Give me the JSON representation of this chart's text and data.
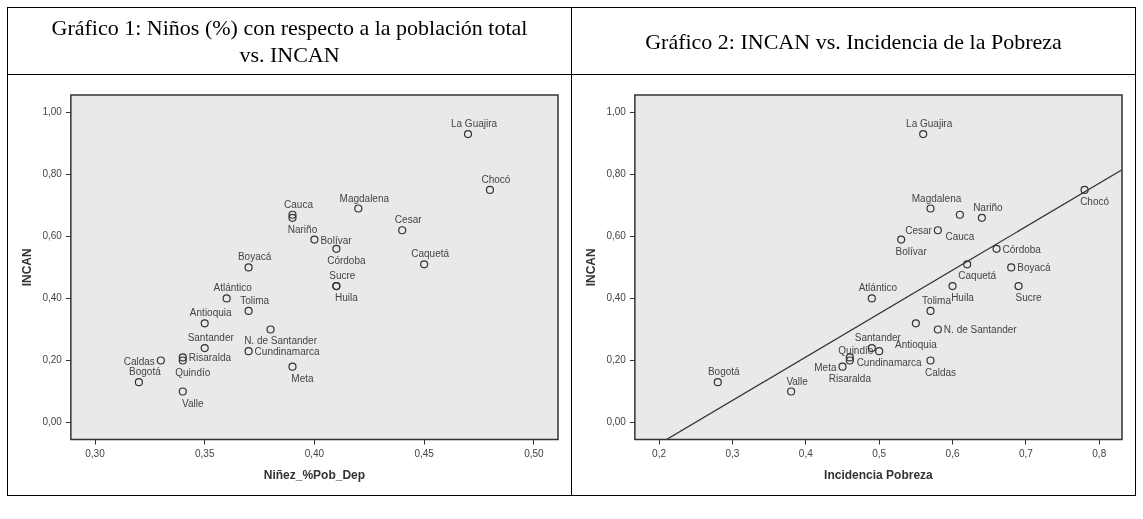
{
  "chart_data": [
    {
      "type": "scatter",
      "title": "Gráfico 1: Niños (%) con respecto a la población total vs. INCAN",
      "xlabel": "Niñez_%Pob_Dep",
      "ylabel": "INCAN",
      "marker": "circle",
      "series": [
        {
          "color": "#333333",
          "x": [
            0.47,
            0.48,
            0.42,
            0.39,
            0.39,
            0.44,
            0.4,
            0.41,
            0.45,
            0.37,
            0.41,
            0.41,
            0.36,
            0.37,
            0.35,
            0.38,
            0.35,
            0.37,
            0.34,
            0.34,
            0.33,
            0.39,
            0.32,
            0.34
          ],
          "values": [
            0.93,
            0.75,
            0.69,
            0.67,
            0.66,
            0.62,
            0.59,
            0.56,
            0.51,
            0.5,
            0.44,
            0.44,
            0.4,
            0.36,
            0.32,
            0.3,
            0.24,
            0.23,
            0.21,
            0.2,
            0.2,
            0.18,
            0.13,
            0.1
          ]
        }
      ],
      "xlim": [
        0.289,
        0.511
      ],
      "xticks": [
        {
          "value": 0.3,
          "label": "0,30"
        },
        {
          "value": 0.35,
          "label": "0,35"
        },
        {
          "value": 0.4,
          "label": "0,40"
        },
        {
          "value": 0.45,
          "label": "0,45"
        },
        {
          "value": 0.5,
          "label": "0,50"
        }
      ],
      "ylim": [
        -0.055,
        1.056
      ],
      "yticks": [
        {
          "value": 0,
          "label": "0,00"
        },
        {
          "value": 0.2,
          "label": "0,20"
        },
        {
          "value": 0.4,
          "label": "0,40"
        },
        {
          "value": 0.6,
          "label": "0,60"
        },
        {
          "value": 0.8,
          "label": "0,80"
        },
        {
          "value": 1,
          "label": "1,00"
        }
      ],
      "annotations": [
        {
          "text": "La Guajira",
          "x": 0.47,
          "y": 0.93
        },
        {
          "text": "Chocó",
          "x": 0.48,
          "y": 0.75
        },
        {
          "text": "Magdalena",
          "x": 0.42,
          "y": 0.69
        },
        {
          "text": "Cauca",
          "x": 0.39,
          "y": 0.67
        },
        {
          "text": "Nariño",
          "x": 0.39,
          "y": 0.66
        },
        {
          "text": "Cesar",
          "x": 0.44,
          "y": 0.62
        },
        {
          "text": "Bolívar",
          "x": 0.4,
          "y": 0.59
        },
        {
          "text": "Córdoba",
          "x": 0.41,
          "y": 0.56
        },
        {
          "text": "Caquetá",
          "x": 0.45,
          "y": 0.51
        },
        {
          "text": "Boyacá",
          "x": 0.37,
          "y": 0.5
        },
        {
          "text": "Sucre",
          "x": 0.41,
          "y": 0.44
        },
        {
          "text": "Huila",
          "x": 0.41,
          "y": 0.44
        },
        {
          "text": "Atlántico",
          "x": 0.36,
          "y": 0.4
        },
        {
          "text": "Tolima",
          "x": 0.37,
          "y": 0.36
        },
        {
          "text": "Antioquia",
          "x": 0.35,
          "y": 0.32
        },
        {
          "text": "N. de Santander",
          "x": 0.38,
          "y": 0.3
        },
        {
          "text": "Santander",
          "x": 0.35,
          "y": 0.24
        },
        {
          "text": "Cundinamarca",
          "x": 0.37,
          "y": 0.23
        },
        {
          "text": "Risaralda",
          "x": 0.34,
          "y": 0.21
        },
        {
          "text": "Quindío",
          "x": 0.34,
          "y": 0.2
        },
        {
          "text": "Caldas",
          "x": 0.33,
          "y": 0.2
        },
        {
          "text": "Meta",
          "x": 0.39,
          "y": 0.18
        },
        {
          "text": "Bogotá",
          "x": 0.32,
          "y": 0.13
        },
        {
          "text": "Valle",
          "x": 0.34,
          "y": 0.1
        }
      ]
    },
    {
      "type": "scatter",
      "title": "Gráfico 2: INCAN vs. Incidencia de la Pobreza",
      "xlabel": "Incidencia Pobreza",
      "ylabel": "INCAN",
      "marker": "circle",
      "series": [
        {
          "color": "#333333",
          "x": [
            0.56,
            0.78,
            0.57,
            0.61,
            0.64,
            0.58,
            0.53,
            0.66,
            0.62,
            0.68,
            0.69,
            0.6,
            0.49,
            0.57,
            0.55,
            0.58,
            0.49,
            0.5,
            0.46,
            0.46,
            0.57,
            0.45,
            0.28,
            0.38
          ],
          "values": [
            0.93,
            0.75,
            0.69,
            0.67,
            0.66,
            0.62,
            0.59,
            0.56,
            0.51,
            0.5,
            0.44,
            0.44,
            0.4,
            0.36,
            0.32,
            0.3,
            0.24,
            0.23,
            0.21,
            0.2,
            0.2,
            0.18,
            0.13,
            0.1
          ]
        },
        {
          "type": "line",
          "color": "#333333",
          "marker": "none",
          "x": [
            0.21,
            0.831
          ],
          "values": [
            -0.055,
            0.815
          ]
        }
      ],
      "xlim": [
        0.167,
        0.831
      ],
      "xticks": [
        {
          "value": 0.2,
          "label": "0,2"
        },
        {
          "value": 0.3,
          "label": "0,3"
        },
        {
          "value": 0.4,
          "label": "0,4"
        },
        {
          "value": 0.5,
          "label": "0,5"
        },
        {
          "value": 0.6,
          "label": "0,6"
        },
        {
          "value": 0.7,
          "label": "0,7"
        },
        {
          "value": 0.8,
          "label": "0,8"
        }
      ],
      "ylim": [
        -0.055,
        1.056
      ],
      "yticks": [
        {
          "value": 0,
          "label": "0,00"
        },
        {
          "value": 0.2,
          "label": "0,20"
        },
        {
          "value": 0.4,
          "label": "0,40"
        },
        {
          "value": 0.6,
          "label": "0,60"
        },
        {
          "value": 0.8,
          "label": "0,80"
        },
        {
          "value": 1,
          "label": "1,00"
        }
      ],
      "annotations": [
        {
          "text": "La Guajira",
          "x": 0.56,
          "y": 0.93
        },
        {
          "text": "Chocó",
          "x": 0.78,
          "y": 0.75
        },
        {
          "text": "Magdalena",
          "x": 0.57,
          "y": 0.69
        },
        {
          "text": "Cauca",
          "x": 0.61,
          "y": 0.67
        },
        {
          "text": "Nariño",
          "x": 0.64,
          "y": 0.66
        },
        {
          "text": "Cesar",
          "x": 0.58,
          "y": 0.62
        },
        {
          "text": "Bolívar",
          "x": 0.53,
          "y": 0.59
        },
        {
          "text": "Córdoba",
          "x": 0.66,
          "y": 0.56
        },
        {
          "text": "Caquetá",
          "x": 0.62,
          "y": 0.51
        },
        {
          "text": "Boyacá",
          "x": 0.68,
          "y": 0.5
        },
        {
          "text": "Sucre",
          "x": 0.69,
          "y": 0.44
        },
        {
          "text": "Huila",
          "x": 0.6,
          "y": 0.44
        },
        {
          "text": "Atlántico",
          "x": 0.49,
          "y": 0.4
        },
        {
          "text": "Tolima",
          "x": 0.57,
          "y": 0.36
        },
        {
          "text": "Antioquia",
          "x": 0.55,
          "y": 0.32
        },
        {
          "text": "N. de Santander",
          "x": 0.58,
          "y": 0.3
        },
        {
          "text": "Santander",
          "x": 0.49,
          "y": 0.24
        },
        {
          "text": "Cundinamarca",
          "x": 0.5,
          "y": 0.23
        },
        {
          "text": "Risaralda",
          "x": 0.46,
          "y": 0.21
        },
        {
          "text": "Quindío",
          "x": 0.46,
          "y": 0.2
        },
        {
          "text": "Caldas",
          "x": 0.57,
          "y": 0.2
        },
        {
          "text": "Meta",
          "x": 0.45,
          "y": 0.18
        },
        {
          "text": "Bogotá",
          "x": 0.28,
          "y": 0.13
        },
        {
          "text": "Valle",
          "x": 0.38,
          "y": 0.1
        }
      ]
    }
  ]
}
